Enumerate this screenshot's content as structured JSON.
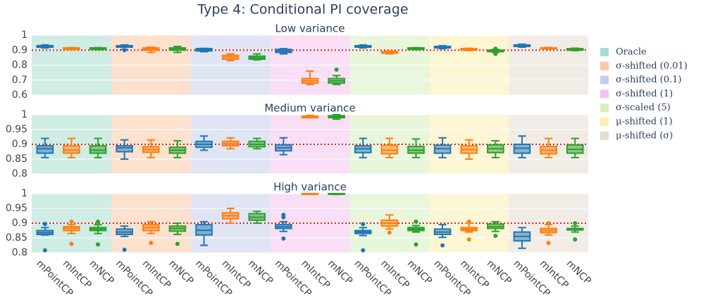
{
  "title": "Type 4: Conditional PI coverage",
  "categories": [
    "mPointCP",
    "mIntCP",
    "mNCP",
    "mPointCP",
    "mIntCP",
    "mNCP",
    "mPointCP",
    "mIntCP",
    "mNCP",
    "mPointCP",
    "mIntCP",
    "mNCP",
    "mPointCP",
    "mIntCP",
    "mNCP",
    "mPointCP",
    "mIntCP",
    "mNCP",
    "mPointCP",
    "mIntCP",
    "mNCP"
  ],
  "groups": [
    {
      "name": "Oracle",
      "color": "#a8dccf"
    },
    {
      "name": "σ-shifted (0.01)",
      "color": "#f9c9a8"
    },
    {
      "name": "σ-shifted (0.1)",
      "color": "#c4cfe9"
    },
    {
      "name": "σ-shifted (1)",
      "color": "#f2c4ec"
    },
    {
      "name": "σ-scaled (5)",
      "color": "#d5efc0"
    },
    {
      "name": "μ-shifted (1)",
      "color": "#fbefb0"
    },
    {
      "name": "μ-shifted (σ)",
      "color": "#e6ddd0"
    }
  ],
  "box_colors": [
    "#1f77b4",
    "#ff7f0e",
    "#2ca02c"
  ],
  "reference_line": 0.9,
  "chart_data": [
    {
      "type": "box",
      "title": "Low variance",
      "ylim": [
        0.6,
        1
      ],
      "yticks": [
        0.6,
        0.7,
        0.8,
        0.9,
        1
      ],
      "grid": true,
      "boxes": [
        {
          "low": 0.915,
          "q1": 0.92,
          "median": 0.925,
          "q3": 0.93,
          "high": 0.935,
          "outliers": []
        },
        {
          "low": 0.903,
          "q1": 0.905,
          "median": 0.91,
          "q3": 0.915,
          "high": 0.917,
          "outliers": []
        },
        {
          "low": 0.903,
          "q1": 0.905,
          "median": 0.91,
          "q3": 0.915,
          "high": 0.917,
          "outliers": []
        },
        {
          "low": 0.905,
          "q1": 0.92,
          "median": 0.925,
          "q3": 0.93,
          "high": 0.935,
          "outliers": [
            0.9
          ]
        },
        {
          "low": 0.885,
          "q1": 0.9,
          "median": 0.908,
          "q3": 0.915,
          "high": 0.92,
          "outliers": []
        },
        {
          "low": 0.885,
          "q1": 0.9,
          "median": 0.91,
          "q3": 0.915,
          "high": 0.925,
          "outliers": []
        },
        {
          "low": 0.89,
          "q1": 0.895,
          "median": 0.902,
          "q3": 0.91,
          "high": 0.912,
          "outliers": []
        },
        {
          "low": 0.83,
          "q1": 0.84,
          "median": 0.855,
          "q3": 0.865,
          "high": 0.875,
          "outliers": []
        },
        {
          "low": 0.835,
          "q1": 0.84,
          "median": 0.85,
          "q3": 0.86,
          "high": 0.875,
          "outliers": []
        },
        {
          "low": 0.875,
          "q1": 0.885,
          "median": 0.895,
          "q3": 0.905,
          "high": 0.91,
          "outliers": []
        },
        {
          "low": 0.67,
          "q1": 0.68,
          "median": 0.695,
          "q3": 0.71,
          "high": 0.76,
          "outliers": []
        },
        {
          "low": 0.67,
          "q1": 0.68,
          "median": 0.695,
          "q3": 0.71,
          "high": 0.73,
          "outliers": [
            0.77
          ]
        },
        {
          "low": 0.915,
          "q1": 0.92,
          "median": 0.925,
          "q3": 0.93,
          "high": 0.935,
          "outliers": []
        },
        {
          "low": 0.875,
          "q1": 0.88,
          "median": 0.885,
          "q3": 0.89,
          "high": 0.895,
          "outliers": []
        },
        {
          "low": 0.903,
          "q1": 0.905,
          "median": 0.91,
          "q3": 0.915,
          "high": 0.917,
          "outliers": []
        },
        {
          "low": 0.91,
          "q1": 0.915,
          "median": 0.92,
          "q3": 0.925,
          "high": 0.93,
          "outliers": []
        },
        {
          "low": 0.897,
          "q1": 0.9,
          "median": 0.905,
          "q3": 0.91,
          "high": 0.913,
          "outliers": []
        },
        {
          "low": 0.885,
          "q1": 0.89,
          "median": 0.895,
          "q3": 0.9,
          "high": 0.905,
          "outliers": [
            0.875,
            0.91
          ]
        },
        {
          "low": 0.92,
          "q1": 0.925,
          "median": 0.93,
          "q3": 0.935,
          "high": 0.94,
          "outliers": []
        },
        {
          "low": 0.907,
          "q1": 0.91,
          "median": 0.912,
          "q3": 0.915,
          "high": 0.918,
          "outliers": []
        },
        {
          "low": 0.897,
          "q1": 0.9,
          "median": 0.905,
          "q3": 0.91,
          "high": 0.913,
          "outliers": []
        }
      ]
    },
    {
      "type": "box",
      "title": "Medium variance",
      "ylim": [
        0.8,
        1
      ],
      "yticks": [
        0.8,
        0.85,
        0.9,
        0.95,
        1
      ],
      "grid": true,
      "boxes": [
        {
          "low": 0.855,
          "q1": 0.87,
          "median": 0.885,
          "q3": 0.895,
          "high": 0.92,
          "outliers": []
        },
        {
          "low": 0.855,
          "q1": 0.87,
          "median": 0.88,
          "q3": 0.895,
          "high": 0.92,
          "outliers": []
        },
        {
          "low": 0.855,
          "q1": 0.87,
          "median": 0.88,
          "q3": 0.895,
          "high": 0.92,
          "outliers": []
        },
        {
          "low": 0.85,
          "q1": 0.875,
          "median": 0.888,
          "q3": 0.895,
          "high": 0.915,
          "outliers": []
        },
        {
          "low": 0.855,
          "q1": 0.873,
          "median": 0.882,
          "q3": 0.892,
          "high": 0.915,
          "outliers": []
        },
        {
          "low": 0.855,
          "q1": 0.87,
          "median": 0.88,
          "q3": 0.89,
          "high": 0.912,
          "outliers": []
        },
        {
          "low": 0.88,
          "q1": 0.89,
          "median": 0.9,
          "q3": 0.91,
          "high": 0.928,
          "outliers": []
        },
        {
          "low": 0.885,
          "q1": 0.895,
          "median": 0.902,
          "q3": 0.91,
          "high": 0.922,
          "outliers": []
        },
        {
          "low": 0.885,
          "q1": 0.892,
          "median": 0.9,
          "q3": 0.91,
          "high": 0.92,
          "outliers": []
        },
        {
          "low": 0.865,
          "q1": 0.878,
          "median": 0.888,
          "q3": 0.898,
          "high": 0.922,
          "outliers": []
        },
        {
          "low": 0.99,
          "q1": 0.99,
          "median": 0.993,
          "q3": 0.995,
          "high": 0.998,
          "outliers": []
        },
        {
          "low": 0.985,
          "q1": 0.99,
          "median": 0.993,
          "q3": 0.997,
          "high": 1,
          "outliers": []
        },
        {
          "low": 0.855,
          "q1": 0.872,
          "median": 0.885,
          "q3": 0.895,
          "high": 0.92,
          "outliers": []
        },
        {
          "low": 0.855,
          "q1": 0.868,
          "median": 0.88,
          "q3": 0.897,
          "high": 0.92,
          "outliers": []
        },
        {
          "low": 0.855,
          "q1": 0.87,
          "median": 0.88,
          "q3": 0.893,
          "high": 0.918,
          "outliers": []
        },
        {
          "low": 0.855,
          "q1": 0.87,
          "median": 0.885,
          "q3": 0.897,
          "high": 0.922,
          "outliers": []
        },
        {
          "low": 0.85,
          "q1": 0.87,
          "median": 0.882,
          "q3": 0.895,
          "high": 0.915,
          "outliers": []
        },
        {
          "low": 0.855,
          "q1": 0.872,
          "median": 0.885,
          "q3": 0.898,
          "high": 0.912,
          "outliers": []
        },
        {
          "low": 0.855,
          "q1": 0.87,
          "median": 0.887,
          "q3": 0.9,
          "high": 0.928,
          "outliers": []
        },
        {
          "low": 0.855,
          "q1": 0.868,
          "median": 0.88,
          "q3": 0.893,
          "high": 0.92,
          "outliers": []
        },
        {
          "low": 0.855,
          "q1": 0.87,
          "median": 0.883,
          "q3": 0.898,
          "high": 0.92,
          "outliers": []
        }
      ]
    },
    {
      "type": "box",
      "title": "High variance",
      "ylim": [
        0.8,
        1
      ],
      "yticks": [
        0.8,
        0.85,
        0.9,
        0.95,
        1
      ],
      "grid": true,
      "boxes": [
        {
          "low": 0.86,
          "q1": 0.862,
          "median": 0.868,
          "q3": 0.875,
          "high": 0.885,
          "outliers": [
            0.808,
            0.897
          ]
        },
        {
          "low": 0.865,
          "q1": 0.875,
          "median": 0.882,
          "q3": 0.888,
          "high": 0.895,
          "outliers": [
            0.83,
            0.905
          ]
        },
        {
          "low": 0.865,
          "q1": 0.875,
          "median": 0.88,
          "q3": 0.885,
          "high": 0.895,
          "outliers": [
            0.828,
            0.905
          ]
        },
        {
          "low": 0.855,
          "q1": 0.862,
          "median": 0.87,
          "q3": 0.88,
          "high": 0.89,
          "outliers": [
            0.81
          ]
        },
        {
          "low": 0.865,
          "q1": 0.875,
          "median": 0.885,
          "q3": 0.895,
          "high": 0.905,
          "outliers": [
            0.833
          ]
        },
        {
          "low": 0.862,
          "q1": 0.873,
          "median": 0.882,
          "q3": 0.89,
          "high": 0.9,
          "outliers": [
            0.83
          ]
        },
        {
          "low": 0.825,
          "q1": 0.86,
          "median": 0.876,
          "q3": 0.895,
          "high": 0.905,
          "outliers": []
        },
        {
          "low": 0.9,
          "q1": 0.915,
          "median": 0.925,
          "q3": 0.935,
          "high": 0.95,
          "outliers": []
        },
        {
          "low": 0.9,
          "q1": 0.91,
          "median": 0.92,
          "q3": 0.932,
          "high": 0.94,
          "outliers": []
        },
        {
          "low": 0.872,
          "q1": 0.882,
          "median": 0.888,
          "q3": 0.895,
          "high": 0.905,
          "outliers": [
            0.848,
            0.92,
            0.928
          ]
        },
        {
          "low": 0.997,
          "q1": 0.998,
          "median": 1,
          "q3": 1,
          "high": 1,
          "outliers": []
        },
        {
          "low": 0.997,
          "q1": 0.998,
          "median": 1,
          "q3": 1,
          "high": 1,
          "outliers": []
        },
        {
          "low": 0.858,
          "q1": 0.865,
          "median": 0.87,
          "q3": 0.875,
          "high": 0.885,
          "outliers": [
            0.808,
            0.897
          ]
        },
        {
          "low": 0.88,
          "q1": 0.89,
          "median": 0.9,
          "q3": 0.91,
          "high": 0.928,
          "outliers": [
            0.868
          ]
        },
        {
          "low": 0.87,
          "q1": 0.875,
          "median": 0.88,
          "q3": 0.885,
          "high": 0.892,
          "outliers": [
            0.828,
            0.905
          ]
        },
        {
          "low": 0.852,
          "q1": 0.862,
          "median": 0.87,
          "q3": 0.88,
          "high": 0.895,
          "outliers": [
            0.825
          ]
        },
        {
          "low": 0.87,
          "q1": 0.875,
          "median": 0.88,
          "q3": 0.885,
          "high": 0.9,
          "outliers": [
            0.845,
            0.905
          ]
        },
        {
          "low": 0.872,
          "q1": 0.882,
          "median": 0.888,
          "q3": 0.897,
          "high": 0.905,
          "outliers": [
            0.857
          ]
        },
        {
          "low": 0.815,
          "q1": 0.84,
          "median": 0.855,
          "q3": 0.87,
          "high": 0.885,
          "outliers": []
        },
        {
          "low": 0.86,
          "q1": 0.868,
          "median": 0.875,
          "q3": 0.882,
          "high": 0.895,
          "outliers": [
            0.833,
            0.9
          ]
        },
        {
          "low": 0.87,
          "q1": 0.877,
          "median": 0.88,
          "q3": 0.882,
          "high": 0.89,
          "outliers": [
            0.845,
            0.9
          ]
        }
      ]
    }
  ]
}
